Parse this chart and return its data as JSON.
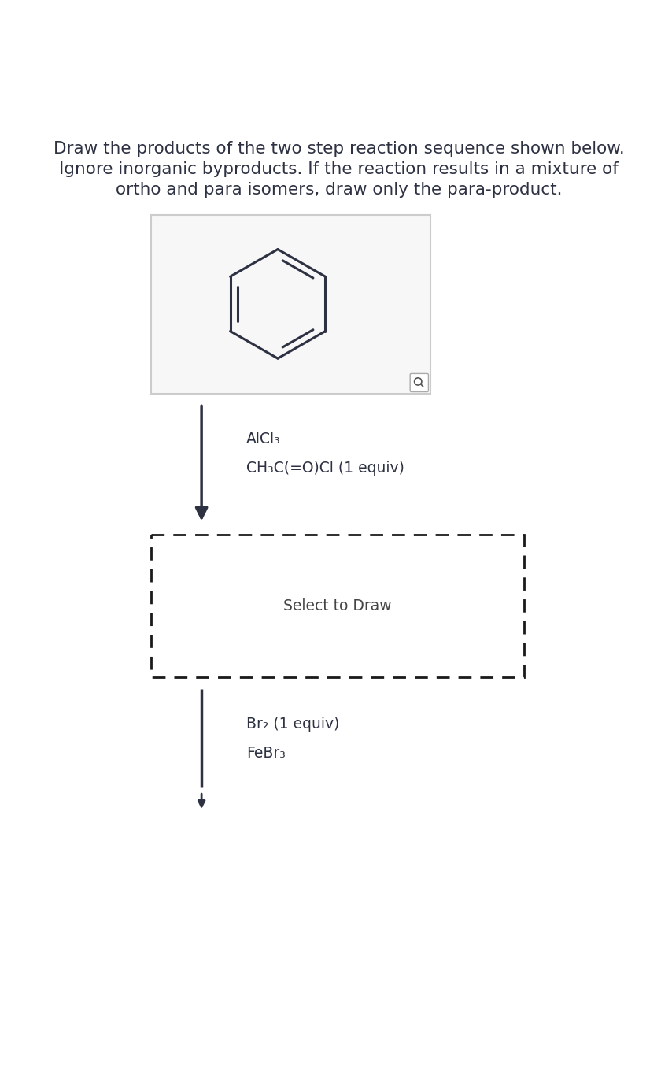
{
  "title_line1": "Draw the products of the two step reaction sequence shown below.",
  "title_line2": "Ignore inorganic byproducts. If the reaction results in a mixture of",
  "title_line3": "ortho and para isomers, draw only the para-product.",
  "background_color": "#ffffff",
  "text_color": "#2d3142",
  "line_color": "#2d3142",
  "box1_color": "#f7f7f7",
  "box1_border": "#cccccc",
  "dashed_border": "#1a1a1a",
  "reagent1_line1": "AlCl₃",
  "reagent1_line2": "CH₃C(=O)Cl (1 equiv)",
  "reagent2_line1": "Br₂ (1 equiv)",
  "reagent2_line2": "FeBr₃",
  "select_to_draw": "Select to Draw",
  "fig_width": 8.4,
  "fig_height": 13.74
}
